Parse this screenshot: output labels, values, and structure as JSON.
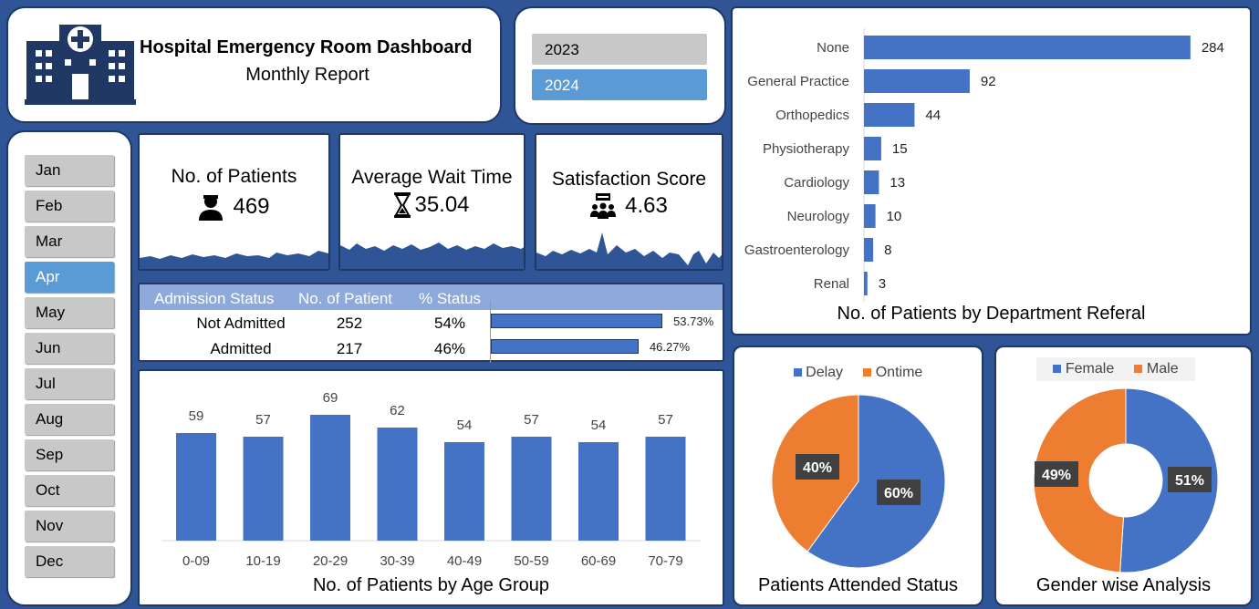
{
  "header": {
    "title": "Hospital Emergency Room Dashboard",
    "subtitle": "Monthly Report",
    "icon": "hospital-icon"
  },
  "years": [
    {
      "label": "2023",
      "selected": false
    },
    {
      "label": "2024",
      "selected": true
    }
  ],
  "months": [
    {
      "label": "Jan",
      "selected": false
    },
    {
      "label": "Feb",
      "selected": false
    },
    {
      "label": "Mar",
      "selected": false
    },
    {
      "label": "Apr",
      "selected": true
    },
    {
      "label": "May",
      "selected": false
    },
    {
      "label": "Jun",
      "selected": false
    },
    {
      "label": "Jul",
      "selected": false
    },
    {
      "label": "Aug",
      "selected": false
    },
    {
      "label": "Sep",
      "selected": false
    },
    {
      "label": "Oct",
      "selected": false
    },
    {
      "label": "Nov",
      "selected": false
    },
    {
      "label": "Dec",
      "selected": false
    }
  ],
  "kpis": {
    "patients": {
      "title": "No. of Patients",
      "value": "469",
      "icon": "person-icon"
    },
    "wait": {
      "title": "Average Wait Time",
      "value": "35.04",
      "icon": "hourglass-icon"
    },
    "satisfaction": {
      "title": "Satisfaction Score",
      "value": "4.63",
      "icon": "audience-icon"
    }
  },
  "admission": {
    "headers": [
      "Admission Status",
      "No. of Patient",
      "% Status"
    ],
    "rows": [
      {
        "status": "Not Admitted",
        "count": "252",
        "pct": "54%",
        "bar_value": 53.73,
        "bar_label": "53.73%"
      },
      {
        "status": "Admitted",
        "count": "217",
        "pct": "46%",
        "bar_value": 46.27,
        "bar_label": "46.27%"
      }
    ]
  },
  "colors": {
    "blue": "#4472c4",
    "orange": "#ed7d31",
    "navy": "#1f3864",
    "bg": "#2f5597"
  },
  "chart_data": [
    {
      "id": "department",
      "type": "bar",
      "orientation": "horizontal",
      "title": "No. of Patients by Department Referal",
      "categories": [
        "None",
        "General Practice",
        "Orthopedics",
        "Physiotherapy",
        "Cardiology",
        "Neurology",
        "Gastroenterology",
        "Renal"
      ],
      "values": [
        284,
        92,
        44,
        15,
        13,
        10,
        8,
        3
      ],
      "xlim": [
        0,
        300
      ]
    },
    {
      "id": "age",
      "type": "bar",
      "title": "No. of Patients by Age Group",
      "categories": [
        "0-09",
        "10-19",
        "20-29",
        "30-39",
        "40-49",
        "50-59",
        "60-69",
        "70-79"
      ],
      "values": [
        59,
        57,
        69,
        62,
        54,
        57,
        54,
        57
      ],
      "ylim": [
        0,
        75
      ]
    },
    {
      "id": "attended",
      "type": "pie",
      "title": "Patients Attended Status",
      "labels": [
        "Delay",
        "Ontime"
      ],
      "values": [
        60,
        40
      ],
      "value_labels": [
        "60%",
        "40%"
      ],
      "legend": "top"
    },
    {
      "id": "gender",
      "type": "pie",
      "donut": true,
      "title": "Gender wise Analysis",
      "labels": [
        "Female",
        "Male"
      ],
      "values": [
        51,
        49
      ],
      "value_labels": [
        "51%",
        "49%"
      ],
      "legend": "top"
    }
  ]
}
